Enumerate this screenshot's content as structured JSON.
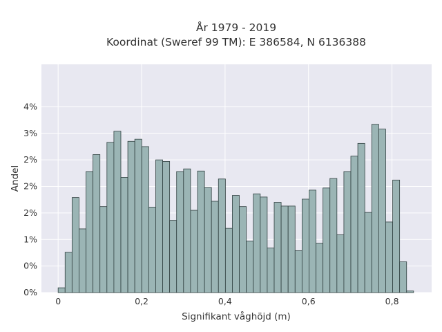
{
  "chart_data": {
    "type": "bar",
    "title_lines": [
      "År 1979 - 2019",
      "Koordinat (Sweref 99 TM): E 386584, N 6136388"
    ],
    "xlabel": "Signifikant våghöjd (m)",
    "ylabel": "Andel",
    "xlim": [
      -0.04,
      0.895
    ],
    "ylim": [
      0,
      4.3
    ],
    "x_ticks": [
      {
        "value": 0,
        "label": "0"
      },
      {
        "value": 0.2,
        "label": "0,2"
      },
      {
        "value": 0.4,
        "label": "0,4"
      },
      {
        "value": 0.6,
        "label": "0,6"
      },
      {
        "value": 0.8,
        "label": "0,8"
      }
    ],
    "y_ticks": [
      {
        "value": 0,
        "label": "0%"
      },
      {
        "value": 0.5,
        "label": "0%"
      },
      {
        "value": 1.0,
        "label": "1%"
      },
      {
        "value": 1.5,
        "label": "2%"
      },
      {
        "value": 2.0,
        "label": "2%"
      },
      {
        "value": 2.5,
        "label": "2%"
      },
      {
        "value": 3.0,
        "label": "3%"
      },
      {
        "value": 3.5,
        "label": "4%"
      }
    ],
    "bin_width": 0.0167,
    "bin_start": 0,
    "values": [
      0.09,
      0.76,
      1.79,
      1.2,
      2.28,
      2.6,
      1.62,
      2.83,
      3.04,
      2.17,
      2.85,
      2.89,
      2.75,
      1.61,
      2.5,
      2.47,
      1.36,
      2.28,
      2.33,
      1.55,
      2.29,
      1.98,
      1.72,
      2.14,
      1.21,
      1.83,
      1.62,
      0.97,
      1.86,
      1.8,
      0.84,
      1.7,
      1.63,
      1.63,
      0.79,
      1.76,
      1.93,
      0.93,
      1.97,
      2.15,
      1.09,
      2.28,
      2.57,
      2.81,
      1.51,
      3.17,
      3.08,
      1.33,
      2.12,
      0.58,
      0.03
    ],
    "colors": {
      "bar_fill": "#9bb5b5",
      "bar_edge": "#2f3f3f",
      "plot_background": "#e8e8f1",
      "grid": "#ffffff",
      "text": "#333333"
    },
    "grid": true
  }
}
